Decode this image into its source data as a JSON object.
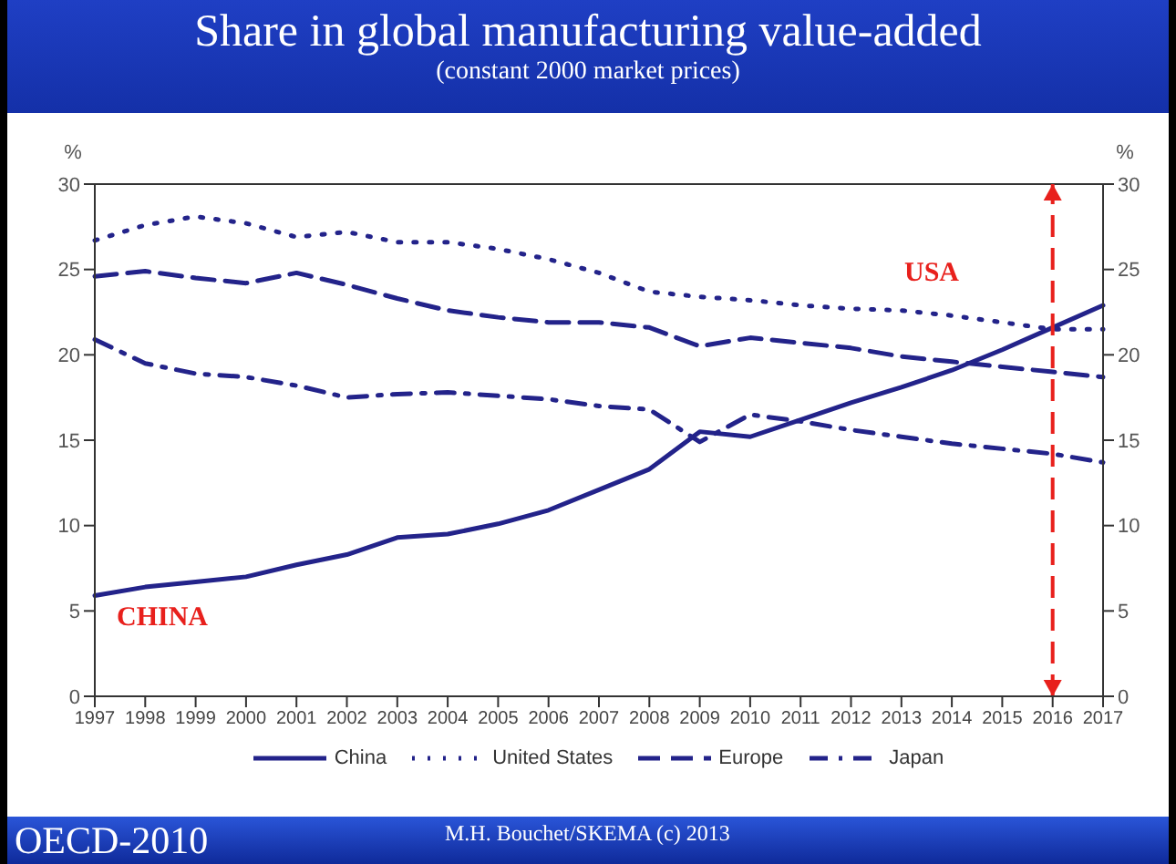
{
  "chart_data": {
    "type": "line",
    "title": "Share in global manufacturing value-added",
    "subtitle": "(constant 2000 market prices)",
    "ylabel": "%",
    "y2label": "%",
    "categories": [
      "1997",
      "1998",
      "1999",
      "2000",
      "2001",
      "2002",
      "2003",
      "2004",
      "2005",
      "2006",
      "2007",
      "2008",
      "2009",
      "2010",
      "2011",
      "2012",
      "2013",
      "2014",
      "2015",
      "2016",
      "2017"
    ],
    "series": [
      {
        "name": "China",
        "color": "#23238a",
        "line_style": "solid",
        "values": [
          5.9,
          6.4,
          6.7,
          7.0,
          7.7,
          8.3,
          9.3,
          9.5,
          10.1,
          10.9,
          12.1,
          13.3,
          15.5,
          15.2,
          16.2,
          17.2,
          18.1,
          19.1,
          20.3,
          21.6,
          22.9
        ]
      },
      {
        "name": "United States",
        "color": "#23238a",
        "line_style": "dotted",
        "values": [
          26.7,
          27.6,
          28.1,
          27.7,
          26.9,
          27.2,
          26.6,
          26.6,
          26.2,
          25.6,
          24.8,
          23.7,
          23.4,
          23.2,
          22.9,
          22.7,
          22.6,
          22.3,
          21.9,
          21.5,
          21.5
        ]
      },
      {
        "name": "Europe",
        "color": "#23238a",
        "line_style": "dashed",
        "values": [
          24.6,
          24.9,
          24.5,
          24.2,
          24.8,
          24.1,
          23.3,
          22.6,
          22.2,
          21.9,
          21.9,
          21.6,
          20.5,
          21.0,
          20.7,
          20.4,
          19.9,
          19.6,
          19.3,
          19.0,
          18.7
        ]
      },
      {
        "name": "Japan",
        "color": "#23238a",
        "line_style": "dashdot",
        "values": [
          20.9,
          19.5,
          18.9,
          18.7,
          18.2,
          17.5,
          17.7,
          17.8,
          17.6,
          17.4,
          17.0,
          16.8,
          14.9,
          16.5,
          16.1,
          15.6,
          15.2,
          14.8,
          14.5,
          14.2,
          13.7
        ]
      }
    ],
    "ylim": [
      0,
      30
    ],
    "yticks": [
      0,
      5,
      10,
      15,
      20,
      25,
      30
    ],
    "y2lim": [
      0,
      30
    ],
    "y2ticks": [
      0,
      5,
      10,
      15,
      20,
      25,
      30
    ],
    "ref_lines": [
      {
        "axis": "x",
        "value": "2016",
        "color": "#e8201c",
        "line_style": "dashed"
      }
    ],
    "annotations": [
      "CHINA",
      "USA",
      "OECD-2010",
      "M.H. Bouchet/SKEMA (c) 2013"
    ],
    "grid": false,
    "legend": "bottom",
    "marker": "none"
  }
}
